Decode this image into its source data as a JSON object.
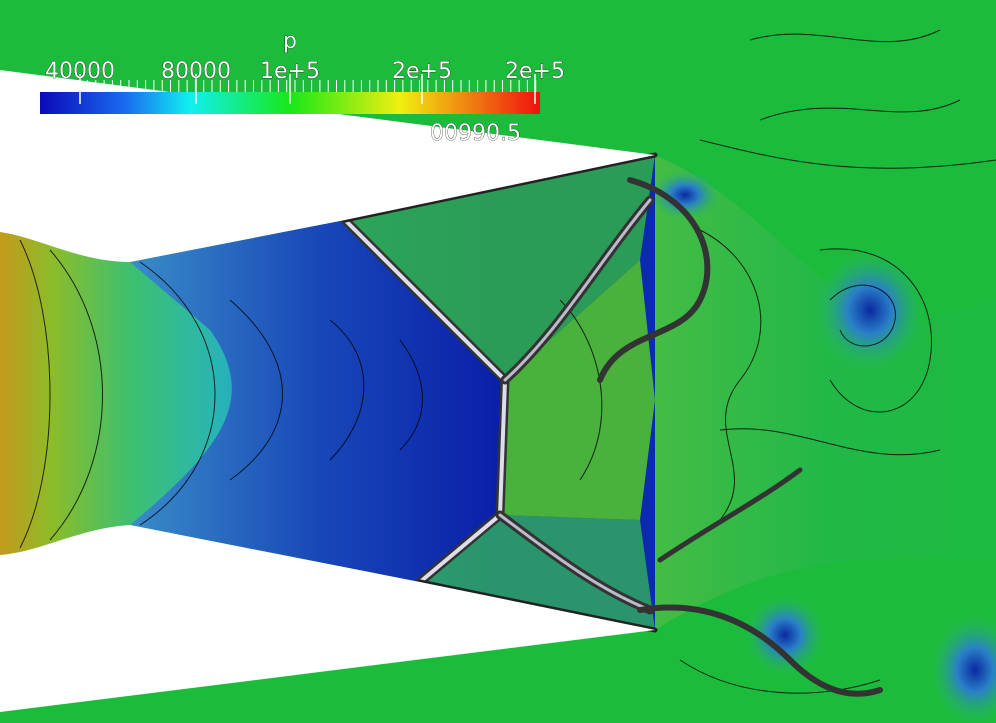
{
  "colorbar": {
    "title": "p",
    "ticks": [
      "40000",
      "80000",
      "1e+5",
      "2e+5",
      "2e+5"
    ]
  },
  "overlay_text": "00990.5"
}
